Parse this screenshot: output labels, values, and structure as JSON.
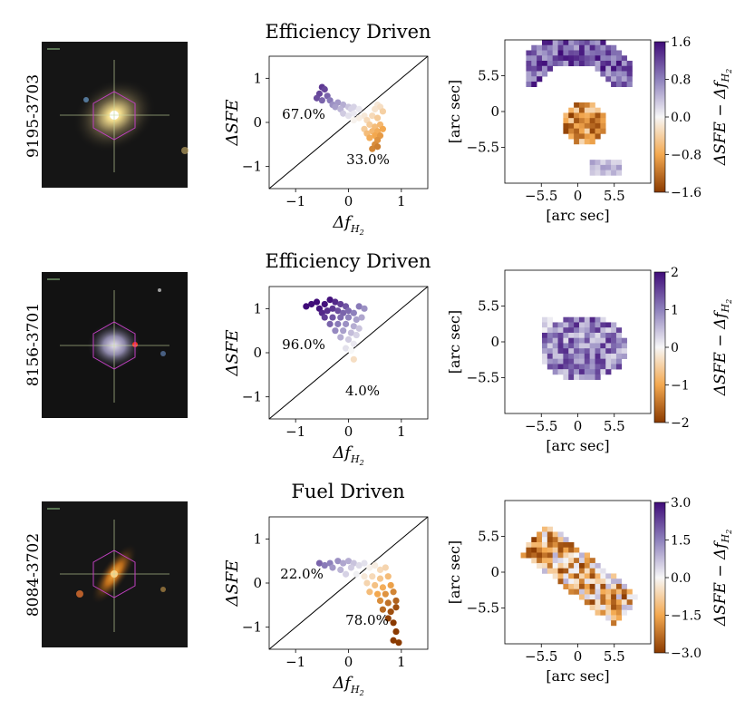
{
  "figure": {
    "axis_label_sfe": "ΔSFE",
    "axis_label_fh2": "Δf",
    "axis_label_fh2_sub": "H",
    "axis_label_fh2_sub2": "2",
    "axis_label_arcsec": "[arc sec]",
    "colorbar_label": "ΔSFE − Δf",
    "colorbar_label_sub": "H",
    "colorbar_label_sub2": "2",
    "colors": {
      "purple_dark": "#3f0b78",
      "purple_light": "#d9d6ea",
      "orange_light": "#fbdcb4",
      "orange_dark": "#8a3a00"
    }
  },
  "rows": [
    {
      "galaxy_id": "9195-3703",
      "title": "Efficiency Driven",
      "pct_upper": "67.0%",
      "pct_lower": "33.0%",
      "colorbar_ticks": [
        "1.6",
        "0.8",
        "0.0",
        "−0.8",
        "−1.6"
      ],
      "colorbar_range": [
        -1.6,
        1.6
      ]
    },
    {
      "galaxy_id": "8156-3701",
      "title": "Efficiency Driven",
      "pct_upper": "96.0%",
      "pct_lower": "4.0%",
      "colorbar_ticks": [
        "2",
        "1",
        "0",
        "−1",
        "−2"
      ],
      "colorbar_range": [
        -2,
        2
      ]
    },
    {
      "galaxy_id": "8084-3702",
      "title": "Fuel Driven",
      "pct_upper": "22.0%",
      "pct_lower": "78.0%",
      "colorbar_ticks": [
        "3.0",
        "1.5",
        "0.0",
        "−1.5",
        "−3.0"
      ],
      "colorbar_range": [
        -3,
        3
      ]
    }
  ],
  "scatter_axes": {
    "xlim": [
      -1.5,
      1.5
    ],
    "ylim": [
      -1.5,
      1.5
    ],
    "x_ticks": [
      "−1",
      "0",
      "1"
    ],
    "y_ticks": [
      "1",
      "0",
      "−1"
    ]
  },
  "map_axes": {
    "x_ticks": [
      "−5.5",
      "0",
      "5.5"
    ],
    "y_ticks": [
      "5.5",
      "0",
      "−5.5"
    ]
  },
  "chart_data": [
    {
      "type": "scatter",
      "title": "Efficiency Driven",
      "xlabel": "Δf_H2",
      "ylabel": "ΔSFE",
      "xlim": [
        -1.5,
        1.5
      ],
      "ylim": [
        -1.5,
        1.5
      ],
      "diagonal": "y = x",
      "points": [
        [
          -0.5,
          0.8
        ],
        [
          -0.45,
          0.75
        ],
        [
          -0.55,
          0.65
        ],
        [
          -0.4,
          0.6
        ],
        [
          -0.6,
          0.55
        ],
        [
          -0.35,
          0.5
        ],
        [
          -0.5,
          0.5
        ],
        [
          -0.2,
          0.45
        ],
        [
          -0.3,
          0.4
        ],
        [
          -0.1,
          0.4
        ],
        [
          -0.25,
          0.35
        ],
        [
          0,
          0.35
        ],
        [
          0.1,
          0.35
        ],
        [
          -0.15,
          0.3
        ],
        [
          0.05,
          0.3
        ],
        [
          0.2,
          0.3
        ],
        [
          -0.1,
          0.2
        ],
        [
          0.1,
          0.2
        ],
        [
          0,
          0.15
        ],
        [
          0.3,
          0.15
        ],
        [
          0.2,
          0.1
        ],
        [
          0.1,
          0.05
        ],
        [
          0.55,
          0.4
        ],
        [
          0.6,
          0.35
        ],
        [
          0.5,
          0.3
        ],
        [
          0.65,
          0.25
        ],
        [
          0.45,
          0.15
        ],
        [
          0.55,
          0.1
        ],
        [
          0.35,
          0.05
        ],
        [
          0.4,
          -0.05
        ],
        [
          0.5,
          -0.1
        ],
        [
          0.6,
          -0.05
        ],
        [
          0.3,
          -0.15
        ],
        [
          0.45,
          -0.2
        ],
        [
          0.55,
          -0.2
        ],
        [
          0.65,
          -0.15
        ],
        [
          0.35,
          -0.25
        ],
        [
          0.5,
          -0.3
        ],
        [
          0.6,
          -0.3
        ],
        [
          0.4,
          -0.35
        ],
        [
          0.55,
          -0.4
        ],
        [
          0.5,
          -0.5
        ],
        [
          0.45,
          -0.6
        ],
        [
          0.55,
          -0.55
        ]
      ],
      "annotations": [
        "67.0%",
        "33.0%"
      ]
    },
    {
      "type": "scatter",
      "title": "Efficiency Driven",
      "xlabel": "Δf_H2",
      "ylabel": "ΔSFE",
      "xlim": [
        -1.5,
        1.5
      ],
      "ylim": [
        -1.5,
        1.5
      ],
      "diagonal": "y = x",
      "points": [
        [
          -0.8,
          1.05
        ],
        [
          -0.7,
          1.1
        ],
        [
          -0.6,
          1.15
        ],
        [
          -0.55,
          1.0
        ],
        [
          -0.45,
          1.1
        ],
        [
          -0.35,
          1.2
        ],
        [
          -0.25,
          1.15
        ],
        [
          -0.15,
          1.1
        ],
        [
          -0.05,
          1.05
        ],
        [
          -0.5,
          0.9
        ],
        [
          -0.4,
          0.95
        ],
        [
          -0.3,
          1.0
        ],
        [
          -0.2,
          0.95
        ],
        [
          -0.1,
          0.9
        ],
        [
          0,
          0.95
        ],
        [
          0.1,
          0.9
        ],
        [
          0.2,
          1.05
        ],
        [
          0.3,
          1.0
        ],
        [
          -0.45,
          0.8
        ],
        [
          -0.3,
          0.8
        ],
        [
          -0.15,
          0.8
        ],
        [
          0,
          0.8
        ],
        [
          0.15,
          0.75
        ],
        [
          0.25,
          0.8
        ],
        [
          -0.35,
          0.65
        ],
        [
          -0.2,
          0.65
        ],
        [
          -0.05,
          0.65
        ],
        [
          0.1,
          0.6
        ],
        [
          0.2,
          0.55
        ],
        [
          -0.25,
          0.5
        ],
        [
          -0.1,
          0.5
        ],
        [
          0.05,
          0.45
        ],
        [
          0.15,
          0.4
        ],
        [
          -0.15,
          0.35
        ],
        [
          0,
          0.3
        ],
        [
          0.1,
          0.2
        ],
        [
          -0.05,
          0.1
        ],
        [
          0.05,
          0.05
        ],
        [
          0.1,
          -0.15
        ]
      ],
      "annotations": [
        "96.0%",
        "4.0%"
      ]
    },
    {
      "type": "scatter",
      "title": "Fuel Driven",
      "xlabel": "Δf_H2",
      "ylabel": "ΔSFE",
      "xlim": [
        -1.5,
        1.5
      ],
      "ylim": [
        -1.5,
        1.5
      ],
      "diagonal": "y = x",
      "points": [
        [
          -0.55,
          0.45
        ],
        [
          -0.45,
          0.4
        ],
        [
          -0.35,
          0.45
        ],
        [
          -0.2,
          0.5
        ],
        [
          -0.1,
          0.45
        ],
        [
          0,
          0.5
        ],
        [
          0.1,
          0.45
        ],
        [
          -0.3,
          0.35
        ],
        [
          -0.15,
          0.3
        ],
        [
          0.05,
          0.35
        ],
        [
          0.2,
          0.4
        ],
        [
          0.3,
          0.45
        ],
        [
          0.4,
          0.35
        ],
        [
          0.5,
          0.4
        ],
        [
          0.6,
          0.3
        ],
        [
          0.7,
          0.35
        ],
        [
          -0.05,
          0.2
        ],
        [
          0.15,
          0.2
        ],
        [
          0.3,
          0.15
        ],
        [
          0.45,
          0.15
        ],
        [
          0.6,
          0.1
        ],
        [
          0.75,
          0.15
        ],
        [
          0.35,
          0
        ],
        [
          0.5,
          -0.05
        ],
        [
          0.65,
          -0.1
        ],
        [
          0.8,
          -0.05
        ],
        [
          0.4,
          -0.2
        ],
        [
          0.55,
          -0.25
        ],
        [
          0.7,
          -0.25
        ],
        [
          0.85,
          -0.2
        ],
        [
          0.6,
          -0.4
        ],
        [
          0.75,
          -0.45
        ],
        [
          0.9,
          -0.4
        ],
        [
          0.65,
          -0.6
        ],
        [
          0.8,
          -0.65
        ],
        [
          0.9,
          -0.55
        ],
        [
          0.75,
          -0.8
        ],
        [
          0.85,
          -0.9
        ],
        [
          0.9,
          -1.1
        ],
        [
          0.95,
          -1.35
        ],
        [
          0.85,
          -1.3
        ]
      ],
      "annotations": [
        "22.0%",
        "78.0%"
      ]
    }
  ]
}
